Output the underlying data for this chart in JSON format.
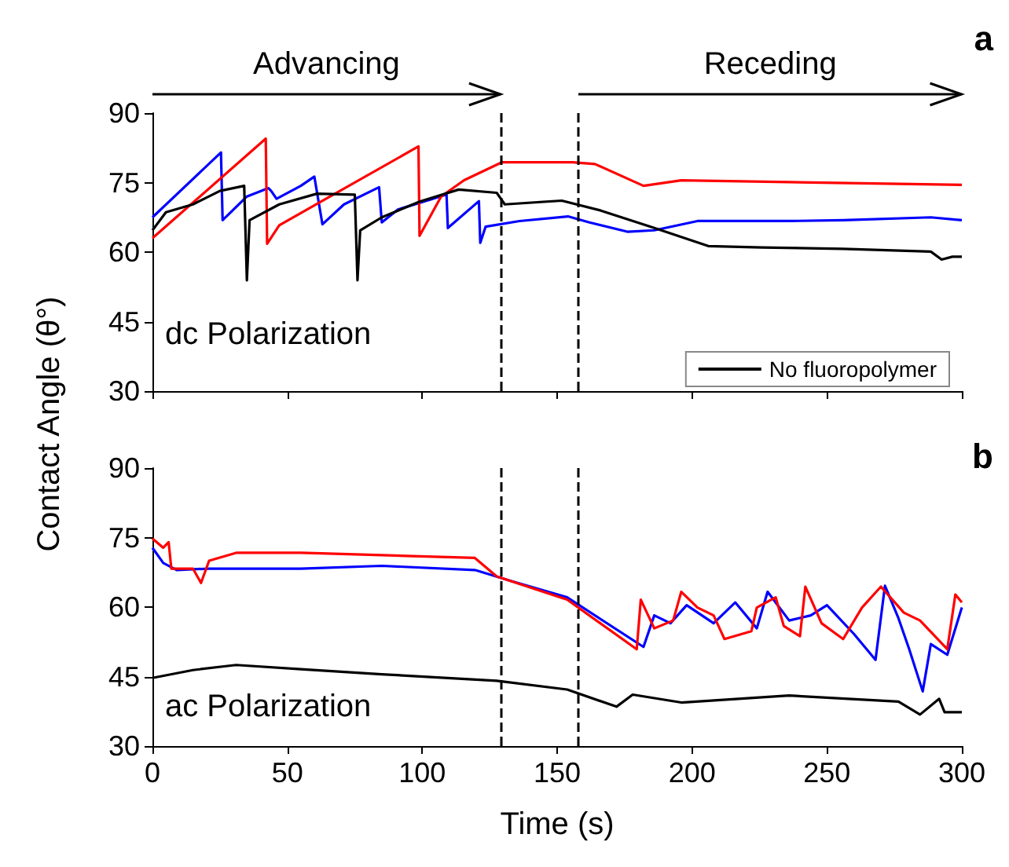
{
  "chart_data": [
    {
      "type": "line",
      "ylabel": "Contact Angle (θ°)",
      "annotations": [
        "Advancing",
        "Receding",
        "a",
        "dc Polarization"
      ],
      "xlim": [
        0,
        300
      ],
      "xticks": [
        0,
        50,
        100,
        150,
        200,
        250,
        300
      ],
      "ylim": [
        30,
        90
      ],
      "yticks": [
        30,
        45,
        60,
        75,
        90
      ],
      "tick_labels": "y",
      "legend": "bottom right",
      "grid": false,
      "line_style": "solid",
      "ref_lines": [
        {
          "axis": "x",
          "value": 129,
          "color": "#000000",
          "line_style": "dashed"
        },
        {
          "axis": "x",
          "value": 158,
          "color": "#000000",
          "line_style": "dashed"
        }
      ],
      "series": [
        {
          "color": "#0000ff",
          "x": [
            0,
            25.4,
            26,
            35,
            43,
            44,
            46,
            55,
            60,
            63,
            71,
            84,
            85,
            91,
            109,
            109.5,
            121,
            121.5,
            123.5,
            136,
            154,
            162,
            176,
            186,
            202,
            236,
            256,
            288.5,
            300
          ],
          "values": [
            67.5,
            81.5,
            66.9,
            72,
            73.8,
            73.2,
            71.5,
            74.3,
            76.3,
            66,
            70.3,
            74,
            66.4,
            69.2,
            72.4,
            65.2,
            71,
            62,
            65.5,
            66.7,
            67.7,
            66.4,
            64.4,
            64.7,
            66.7,
            66.7,
            66.9,
            67.5,
            66.9
          ]
        },
        {
          "color": "#ff0000",
          "x": [
            0,
            42,
            42.5,
            47,
            98.6,
            99,
            107,
            115.5,
            129.6,
            155.7,
            164,
            182,
            196,
            236,
            300
          ],
          "values": [
            63,
            84.5,
            61.8,
            65.8,
            82.8,
            63.5,
            72,
            75.5,
            79.4,
            79.4,
            79,
            74.3,
            75.5,
            75.1,
            74.5
          ]
        },
        {
          "name": "No fluoropolymer",
          "color": "#000000",
          "x": [
            0,
            5,
            15,
            25,
            34,
            35,
            36,
            47,
            61,
            75,
            76,
            77,
            85,
            99,
            113.5,
            127.6,
            130.6,
            151.7,
            166,
            186,
            206,
            226,
            256,
            288.5,
            292.5,
            296.5,
            300
          ],
          "values": [
            64.7,
            68.6,
            70.3,
            73.2,
            74.3,
            53.9,
            66.9,
            70.3,
            72.6,
            72.4,
            53.9,
            64.7,
            67.5,
            70.9,
            73.5,
            72.8,
            70.3,
            71.1,
            69,
            65.2,
            61.3,
            61,
            60.7,
            60.1,
            58.4,
            59,
            59
          ]
        }
      ]
    },
    {
      "type": "line",
      "xlabel": "Time (s)",
      "annotations": [
        "b",
        "ac Polarization"
      ],
      "xlim": [
        0,
        300
      ],
      "xticks": [
        0,
        50,
        100,
        150,
        200,
        250,
        300
      ],
      "ylim": [
        30,
        90
      ],
      "yticks": [
        30,
        45,
        60,
        75,
        90
      ],
      "grid": false,
      "line_style": "solid",
      "ref_lines": [
        {
          "axis": "x",
          "value": 129,
          "color": "#000000",
          "line_style": "dashed"
        },
        {
          "axis": "x",
          "value": 158,
          "color": "#000000",
          "line_style": "dashed"
        }
      ],
      "series": [
        {
          "color": "#0000ff",
          "x": [
            0,
            4,
            9,
            21,
            55,
            85,
            119.5,
            133.6,
            153.7,
            182,
            186,
            192,
            198,
            208,
            216,
            224,
            228,
            236,
            244,
            250,
            260,
            268,
            271.5,
            276.5,
            280.5,
            285.5,
            288.5,
            294.6,
            300
          ],
          "values": [
            72.8,
            69.5,
            68,
            68.3,
            68.3,
            68.9,
            68,
            65.5,
            62.1,
            51.4,
            58.2,
            56.5,
            60.4,
            56.5,
            61,
            55.4,
            63.3,
            57.1,
            58.2,
            60.4,
            54.2,
            48.6,
            64.6,
            57.6,
            50.9,
            41.8,
            52,
            49.7,
            59.9
          ]
        },
        {
          "color": "#ff0000",
          "x": [
            0,
            4,
            6,
            7,
            15,
            18,
            21,
            31,
            55,
            85,
            119.5,
            127.6,
            153.7,
            179.5,
            181,
            186,
            193,
            196,
            202,
            208,
            212,
            222,
            224,
            231,
            234,
            240,
            242,
            248,
            256,
            263,
            270,
            278.5,
            284.5,
            294.6,
            297.6,
            300
          ],
          "values": [
            74.8,
            72.8,
            74,
            68.3,
            68.3,
            65.2,
            70,
            71.7,
            71.7,
            71.2,
            70.6,
            66.6,
            61.6,
            50.9,
            61.6,
            55.4,
            57.1,
            63.3,
            59.9,
            58.2,
            53.1,
            54.8,
            59.9,
            62.1,
            55.9,
            53.7,
            64.4,
            56.5,
            53.1,
            59.9,
            64.4,
            58.8,
            57.1,
            50.9,
            62.7,
            61
          ]
        },
        {
          "color": "#000000",
          "x": [
            0,
            15,
            31,
            55,
            85,
            127.6,
            153.7,
            172,
            178,
            196,
            236,
            276.5,
            284.5,
            291.6,
            293.6,
            300
          ],
          "values": [
            44.7,
            46.4,
            47.5,
            46.6,
            45.5,
            44.1,
            42.2,
            38.5,
            41.1,
            39.4,
            40.9,
            39.6,
            36.8,
            40.2,
            37.3,
            37.3
          ]
        }
      ]
    }
  ]
}
